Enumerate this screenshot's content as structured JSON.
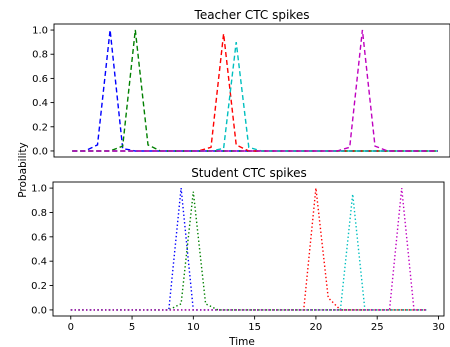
{
  "chart_data": [
    {
      "type": "line",
      "title": "Teacher CTC spikes",
      "xlim": [
        -1.45,
        29.95
      ],
      "ylim": [
        -0.05,
        1.05
      ],
      "yticks": [
        "0.0",
        "0.2",
        "0.4",
        "0.6",
        "0.8",
        "1.0"
      ],
      "ytick_values": [
        0,
        0.2,
        0.4,
        0.6,
        0.8,
        1.0
      ],
      "linestyle": "dashed",
      "grid": false,
      "series": [
        {
          "color": "#0000ff",
          "x": [
            0,
            1,
            2,
            3,
            4,
            5,
            29
          ],
          "y": [
            0,
            0,
            0.05,
            1.0,
            0.02,
            0,
            0
          ]
        },
        {
          "color": "#008000",
          "x": [
            0,
            3,
            4,
            5,
            6,
            7,
            29
          ],
          "y": [
            0,
            0,
            0.04,
            1.0,
            0.05,
            0,
            0
          ]
        },
        {
          "color": "#ff0000",
          "x": [
            0,
            10,
            11,
            12,
            13,
            14,
            29
          ],
          "y": [
            0,
            0,
            0.03,
            0.97,
            0.05,
            0,
            0
          ]
        },
        {
          "color": "#00bfbf",
          "x": [
            0,
            11,
            12,
            13,
            14,
            15,
            29
          ],
          "y": [
            0,
            0,
            0.02,
            0.9,
            0.03,
            0,
            0
          ]
        },
        {
          "color": "#bf00bf",
          "x": [
            0,
            21,
            22,
            23,
            24,
            25,
            29
          ],
          "y": [
            0,
            0,
            0.03,
            1.0,
            0.04,
            0,
            0
          ]
        }
      ]
    },
    {
      "type": "line",
      "title": "Student CTC spikes",
      "xlabel": "Time",
      "ylabel": "Probability",
      "xlim": [
        -1.45,
        30.45
      ],
      "ylim": [
        -0.05,
        1.05
      ],
      "xticks": [
        "0",
        "5",
        "10",
        "15",
        "20",
        "25",
        "30"
      ],
      "xtick_values": [
        0,
        5,
        10,
        15,
        20,
        25,
        30
      ],
      "yticks": [
        "0.0",
        "0.2",
        "0.4",
        "0.6",
        "0.8",
        "1.0"
      ],
      "ytick_values": [
        0,
        0.2,
        0.4,
        0.6,
        0.8,
        1.0
      ],
      "linestyle": "dotted",
      "grid": false,
      "series": [
        {
          "color": "#0000ff",
          "x": [
            0,
            8,
            9,
            10,
            29
          ],
          "y": [
            0,
            0,
            1.0,
            0,
            0
          ]
        },
        {
          "color": "#008000",
          "x": [
            0,
            8,
            9,
            10,
            11,
            12,
            29
          ],
          "y": [
            0,
            0,
            0.05,
            0.97,
            0.05,
            0,
            0
          ]
        },
        {
          "color": "#ff0000",
          "x": [
            0,
            19,
            20,
            21,
            22,
            29
          ],
          "y": [
            0,
            0,
            1.0,
            0.1,
            0,
            0
          ]
        },
        {
          "color": "#00bfbf",
          "x": [
            0,
            22,
            23,
            24,
            29
          ],
          "y": [
            0,
            0,
            0.95,
            0,
            0
          ]
        },
        {
          "color": "#bf00bf",
          "x": [
            0,
            26,
            27,
            28,
            29
          ],
          "y": [
            0,
            0,
            1.0,
            0,
            0
          ]
        }
      ]
    }
  ]
}
